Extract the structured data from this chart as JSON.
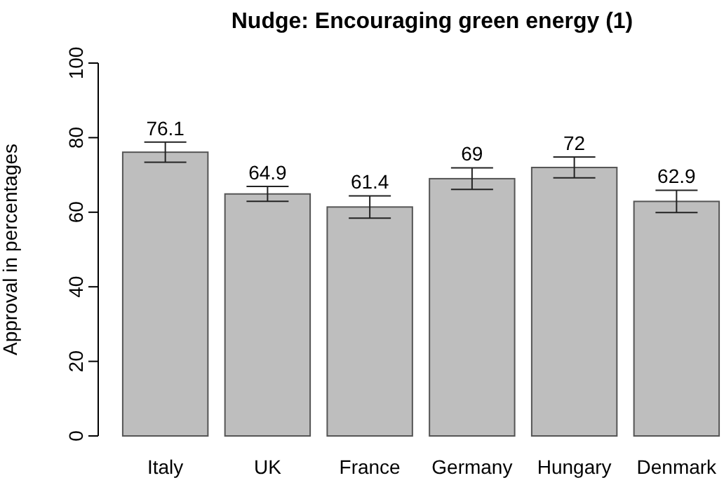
{
  "chart_data": {
    "type": "bar",
    "title": "Nudge: Encouraging green energy (1)",
    "ylabel": "Approval in percentages",
    "categories": [
      "Italy",
      "UK",
      "France",
      "Germany",
      "Hungary",
      "Denmark"
    ],
    "values": [
      76.1,
      64.9,
      61.4,
      69,
      72,
      62.9
    ],
    "errors": [
      2.7,
      2,
      3,
      2.9,
      2.8,
      3
    ],
    "color": "#bebebe",
    "ylim": [
      0,
      100
    ],
    "yticks": [
      0,
      20,
      40,
      60,
      80,
      100
    ],
    "data_labels": true
  }
}
